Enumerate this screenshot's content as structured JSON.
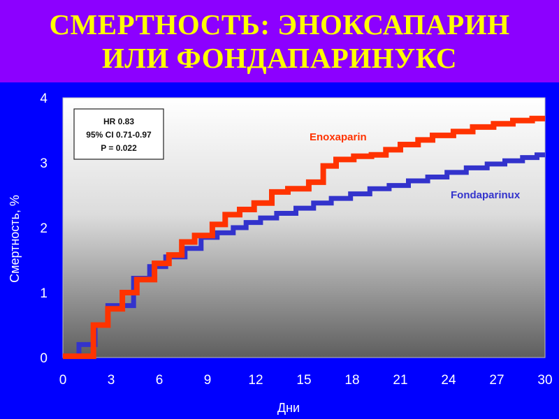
{
  "slide": {
    "title_line1": "СМЕРТНОСТЬ: ЭНОКСАПАРИН",
    "title_line2": "ИЛИ ФОНДАПАРИНУКС"
  },
  "colors": {
    "background": "#0000ff",
    "title_bar": "#8c00ff",
    "title_text": "#ffff00",
    "enoxaparin": "#ff3300",
    "fondaparinux": "#3333cc"
  },
  "chart_data": {
    "type": "line",
    "step": true,
    "xlabel": "Дни",
    "ylabel": "Смертность, %",
    "xlim": [
      0,
      30
    ],
    "ylim": [
      0,
      4
    ],
    "x_ticks": [
      "0",
      "3",
      "6",
      "9",
      "12",
      "15",
      "18",
      "21",
      "24",
      "27",
      "30"
    ],
    "y_ticks": [
      "0",
      "1",
      "2",
      "3",
      "4"
    ],
    "stats": [
      "HR  0.83",
      "95% CI 0.71-0.97",
      "P = 0.022"
    ],
    "series": [
      {
        "name": "Enoxaparin",
        "color": "#ff3300",
        "x": [
          0,
          1.9,
          2.8,
          3.7,
          4.6,
          5.7,
          6.6,
          7.4,
          8.2,
          9.3,
          10.1,
          11.0,
          11.9,
          13.0,
          14.0,
          15.3,
          16.2,
          17.0,
          18.1,
          19.2,
          20.1,
          21.0,
          22.1,
          23.0,
          24.3,
          25.5,
          26.8,
          28.0,
          29.2,
          29.8
        ],
        "y": [
          0.02,
          0.5,
          0.75,
          1.0,
          1.2,
          1.45,
          1.58,
          1.78,
          1.88,
          2.05,
          2.2,
          2.28,
          2.38,
          2.55,
          2.6,
          2.7,
          2.95,
          3.05,
          3.1,
          3.12,
          3.2,
          3.28,
          3.35,
          3.42,
          3.48,
          3.55,
          3.6,
          3.65,
          3.68,
          3.68
        ]
      },
      {
        "name": "Fondaparinux",
        "color": "#3333cc",
        "x": [
          0,
          1.0,
          2.0,
          2.8,
          4.4,
          5.4,
          6.4,
          7.6,
          8.6,
          9.6,
          10.6,
          11.4,
          12.3,
          13.3,
          14.5,
          15.6,
          16.7,
          17.9,
          19.1,
          20.3,
          21.5,
          22.7,
          23.9,
          25.1,
          26.4,
          27.5,
          28.6,
          29.5
        ],
        "y": [
          0.02,
          0.2,
          0.5,
          0.8,
          1.22,
          1.4,
          1.55,
          1.68,
          1.85,
          1.92,
          2.0,
          2.08,
          2.15,
          2.22,
          2.3,
          2.38,
          2.45,
          2.52,
          2.6,
          2.65,
          2.72,
          2.78,
          2.85,
          2.92,
          2.98,
          3.03,
          3.08,
          3.12
        ]
      }
    ]
  }
}
